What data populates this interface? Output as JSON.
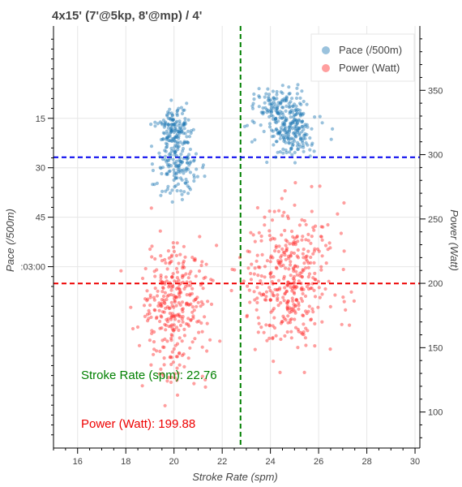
{
  "chart_data": {
    "type": "scatter",
    "title": "4x15' (7'@5kp, 8'@mp) / 4'",
    "xlabel": "Stroke Rate (spm)",
    "ylabel_left": "Pace (/500m)",
    "ylabel_right": "Power (Watt)",
    "xlim": [
      15,
      30.2
    ],
    "x_ticks": [
      16,
      18,
      20,
      22,
      24,
      26,
      28,
      30
    ],
    "x_tick_labels": [
      "16",
      "18",
      "20",
      "22",
      "24",
      "26",
      "28",
      "30"
    ],
    "pace_axis": {
      "direction": "inverted",
      "ylim_seconds": [
        62,
        190
      ],
      "ticks_seconds": [
        90,
        105,
        120,
        135
      ],
      "tick_labels": [
        "15",
        "30",
        "45",
        ":03:00"
      ]
    },
    "power_axis": {
      "ylim": [
        72,
        400
      ],
      "ticks": [
        100,
        150,
        200,
        250,
        300,
        350
      ],
      "tick_labels": [
        "100",
        "150",
        "200",
        "250",
        "300",
        "350"
      ]
    },
    "legend": {
      "placement": "top-right",
      "entries": [
        "Pace (/500m)",
        "Power (Watt)"
      ]
    },
    "grid": true,
    "series": [
      {
        "name": "Pace (/500m)",
        "axis": "pace",
        "color": "#1f77b4",
        "clusters": [
          {
            "x_center": 20.0,
            "x_spread": 0.35,
            "y_center_seconds": 93,
            "y_spread": 3,
            "count": 130
          },
          {
            "x_center": 20.2,
            "x_spread": 0.45,
            "y_center_seconds": 104,
            "y_spread": 5,
            "count": 150
          },
          {
            "x_center": 24.2,
            "x_spread": 0.55,
            "y_center_seconds": 86,
            "y_spread": 3,
            "count": 110
          },
          {
            "x_center": 24.9,
            "x_spread": 0.5,
            "y_center_seconds": 93.5,
            "y_spread": 4,
            "count": 200
          }
        ]
      },
      {
        "name": "Power (Watt)",
        "axis": "power",
        "color": "#ff2a2a",
        "clusters": [
          {
            "x_center": 20.0,
            "x_spread": 0.7,
            "y_center": 180,
            "y_spread": 25,
            "count": 330
          },
          {
            "x_center": 24.8,
            "x_spread": 0.9,
            "y_center": 205,
            "y_spread": 28,
            "count": 390
          }
        ]
      }
    ],
    "reference_lines": [
      {
        "orientation": "vertical",
        "axis": "x",
        "value": 22.76,
        "color": "#008000",
        "style": "dashed"
      },
      {
        "orientation": "horizontal",
        "axis": "power",
        "value": 298,
        "color": "#0000ee",
        "style": "dashed"
      },
      {
        "orientation": "horizontal",
        "axis": "power",
        "value": 199.88,
        "color": "#ee0000",
        "style": "dashed"
      }
    ],
    "annotations": [
      {
        "text": "Stroke Rate (spm): 22.76",
        "color": "#008000"
      },
      {
        "text": "Power (Watt): 199.88",
        "color": "#ee0000"
      }
    ]
  }
}
